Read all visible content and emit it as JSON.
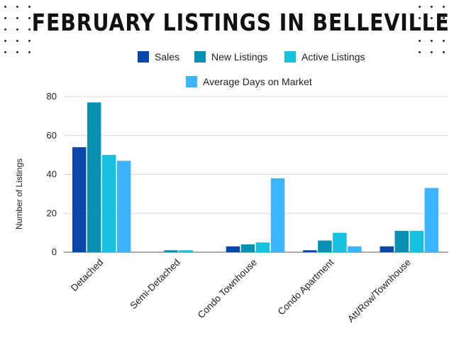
{
  "chart_data": {
    "type": "bar",
    "title": "FEBRUARY LISTINGS IN BELLEVILLE",
    "ylabel": "Number of Listings",
    "xlabel": "",
    "ylim": [
      0,
      80
    ],
    "yticks": [
      0,
      20,
      40,
      60,
      80
    ],
    "grid": true,
    "legend_position": "top",
    "categories": [
      "Detached",
      "Semi-Detached",
      "Condo Townhouse",
      "Condo Apartment",
      "Att/Row/Townhouse"
    ],
    "series": [
      {
        "name": "Sales",
        "color": "#0a47a9",
        "values": [
          54,
          0,
          3,
          1,
          3
        ]
      },
      {
        "name": "New Listings",
        "color": "#0891b2",
        "values": [
          77,
          1,
          4,
          6,
          11
        ]
      },
      {
        "name": "Active Listings",
        "color": "#15c1df",
        "values": [
          50,
          1,
          5,
          10,
          11
        ]
      },
      {
        "name": "Average Days on Market",
        "color": "#3bb5ff",
        "values": [
          47,
          0,
          38,
          3,
          33
        ]
      }
    ]
  }
}
